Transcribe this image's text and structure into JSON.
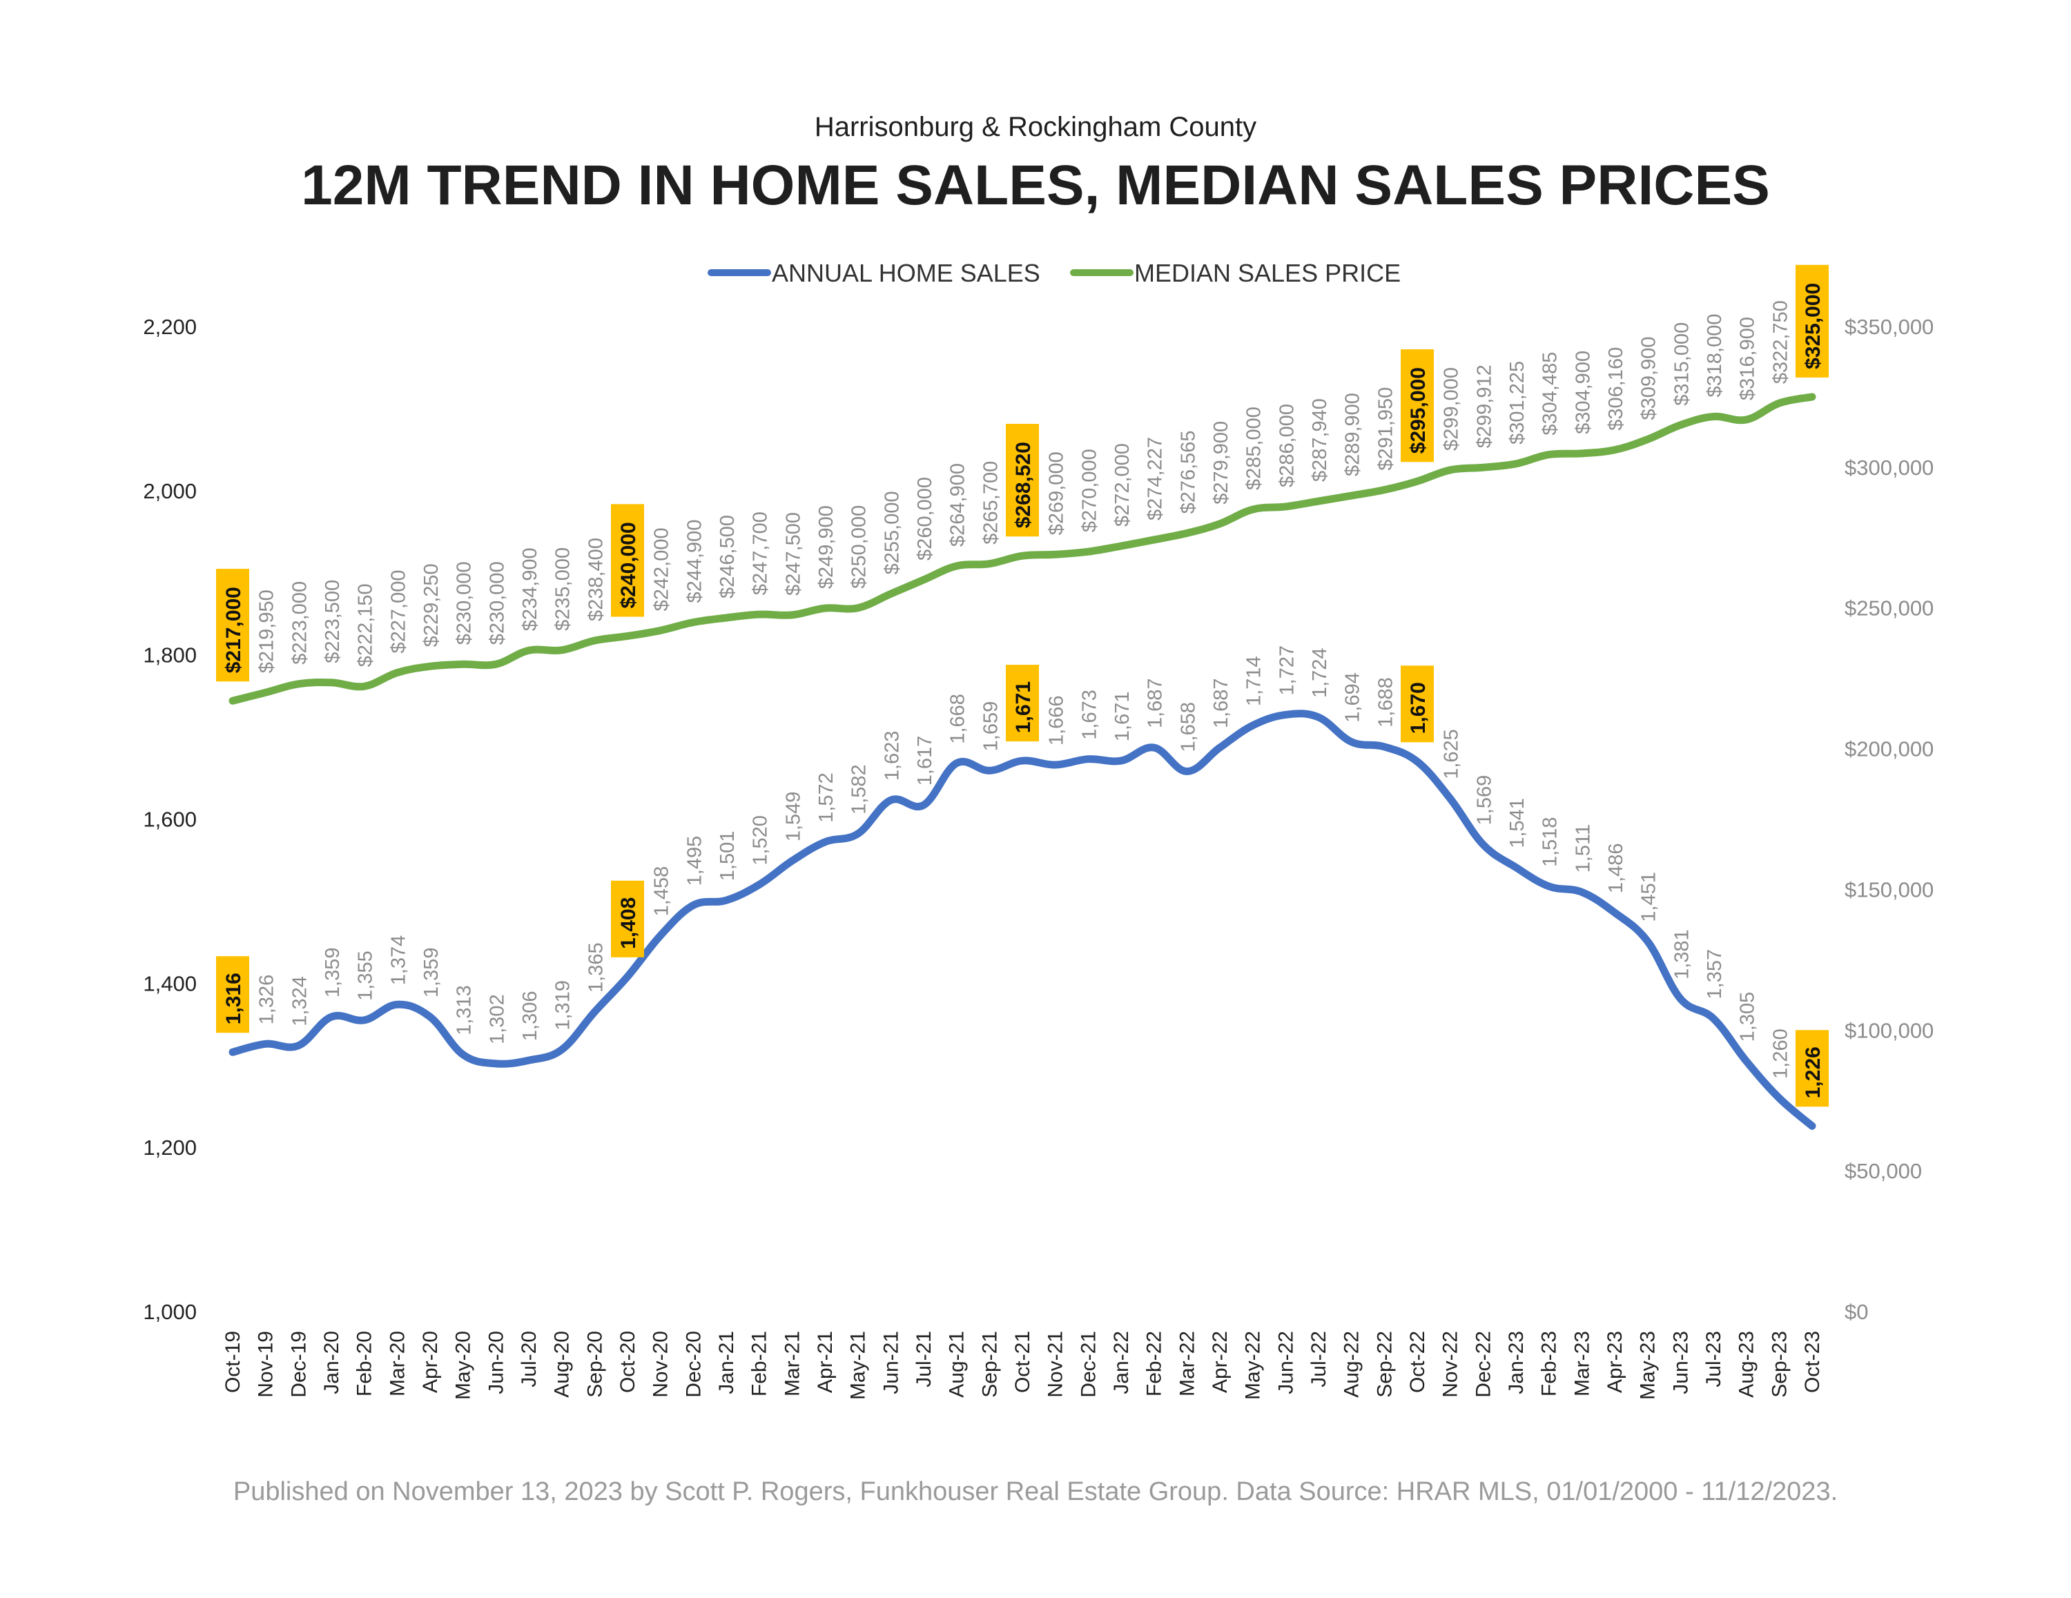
{
  "chart_data": {
    "type": "line",
    "subtitle": "Harrisonburg & Rockingham County",
    "title": "12M TREND IN HOME SALES, MEDIAN SALES PRICES",
    "categories": [
      "Oct-19",
      "Nov-19",
      "Dec-19",
      "Jan-20",
      "Feb-20",
      "Mar-20",
      "Apr-20",
      "May-20",
      "Jun-20",
      "Jul-20",
      "Aug-20",
      "Sep-20",
      "Oct-20",
      "Nov-20",
      "Dec-20",
      "Jan-21",
      "Feb-21",
      "Mar-21",
      "Apr-21",
      "May-21",
      "Jun-21",
      "Jul-21",
      "Aug-21",
      "Sep-21",
      "Oct-21",
      "Nov-21",
      "Dec-21",
      "Jan-22",
      "Feb-22",
      "Mar-22",
      "Apr-22",
      "May-22",
      "Jun-22",
      "Jul-22",
      "Aug-22",
      "Sep-22",
      "Oct-22",
      "Nov-22",
      "Dec-22",
      "Jan-23",
      "Feb-23",
      "Mar-23",
      "Apr-23",
      "May-23",
      "Jun-23",
      "Jul-23",
      "Aug-23",
      "Sep-23",
      "Oct-23"
    ],
    "series": [
      {
        "name": "ANNUAL HOME SALES",
        "axis": "left",
        "color": "#4472C4",
        "values": [
          1316,
          1326,
          1324,
          1359,
          1355,
          1374,
          1359,
          1313,
          1302,
          1306,
          1319,
          1365,
          1408,
          1458,
          1495,
          1501,
          1520,
          1549,
          1572,
          1582,
          1623,
          1617,
          1668,
          1659,
          1671,
          1666,
          1673,
          1671,
          1687,
          1658,
          1687,
          1714,
          1727,
          1724,
          1694,
          1688,
          1670,
          1625,
          1569,
          1541,
          1518,
          1511,
          1486,
          1451,
          1381,
          1357,
          1305,
          1260,
          1226
        ],
        "labels": [
          "1,316",
          "1,326",
          "1,324",
          "1,359",
          "1,355",
          "1,374",
          "1,359",
          "1,313",
          "1,302",
          "1,306",
          "1,319",
          "1,365",
          "1,408",
          "1,458",
          "1,495",
          "1,501",
          "1,520",
          "1,549",
          "1,572",
          "1,582",
          "1,623",
          "1,617",
          "1,668",
          "1,659",
          "1,671",
          "1,666",
          "1,673",
          "1,671",
          "1,687",
          "1,658",
          "1,687",
          "1,714",
          "1,727",
          "1,724",
          "1,694",
          "1,688",
          "1,670",
          "1,625",
          "1,569",
          "1,541",
          "1,518",
          "1,511",
          "1,486",
          "1,451",
          "1,381",
          "1,357",
          "1,305",
          "1,260",
          "1,226"
        ],
        "highlighted": [
          "Oct-19",
          "Oct-20",
          "Oct-21",
          "Oct-22",
          "Oct-23"
        ]
      },
      {
        "name": "MEDIAN SALES PRICE",
        "axis": "right",
        "color": "#70AD47",
        "values": [
          217000,
          219950,
          223000,
          223500,
          222150,
          227000,
          229250,
          230000,
          230000,
          234900,
          235000,
          238400,
          240000,
          242000,
          244900,
          246500,
          247700,
          247500,
          249900,
          250000,
          255000,
          260000,
          264900,
          265700,
          268520,
          269000,
          270000,
          272000,
          274227,
          276565,
          279900,
          285000,
          286000,
          287940,
          289900,
          291950,
          295000,
          299000,
          299912,
          301225,
          304485,
          304900,
          306160,
          309900,
          315000,
          318000,
          316900,
          322750,
          325000
        ],
        "labels": [
          "$217,000",
          "$219,950",
          "$223,000",
          "$223,500",
          "$222,150",
          "$227,000",
          "$229,250",
          "$230,000",
          "$230,000",
          "$234,900",
          "$235,000",
          "$238,400",
          "$240,000",
          "$242,000",
          "$244,900",
          "$246,500",
          "$247,700",
          "$247,500",
          "$249,900",
          "$250,000",
          "$255,000",
          "$260,000",
          "$264,900",
          "$265,700",
          "$268,520",
          "$269,000",
          "$270,000",
          "$272,000",
          "$274,227",
          "$276,565",
          "$279,900",
          "$285,000",
          "$286,000",
          "$287,940",
          "$289,900",
          "$291,950",
          "$295,000",
          "$299,000",
          "$299,912",
          "$301,225",
          "$304,485",
          "$304,900",
          "$306,160",
          "$309,900",
          "$315,000",
          "$318,000",
          "$316,900",
          "$322,750",
          "$325,000"
        ],
        "highlighted": [
          "Oct-19",
          "Oct-20",
          "Oct-21",
          "Oct-22",
          "Oct-23"
        ]
      }
    ],
    "y_left": {
      "min": 1000,
      "max": 2200,
      "ticks": [
        "1,000",
        "1,200",
        "1,400",
        "1,600",
        "1,800",
        "2,000",
        "2,200"
      ],
      "tick_values": [
        1000,
        1200,
        1400,
        1600,
        1800,
        2000,
        2200
      ]
    },
    "y_right": {
      "min": 0,
      "max": 350000,
      "ticks": [
        "$0",
        "$50,000",
        "$100,000",
        "$150,000",
        "$200,000",
        "$250,000",
        "$300,000",
        "$350,000"
      ],
      "tick_values": [
        0,
        50000,
        100000,
        150000,
        200000,
        250000,
        300000,
        350000
      ]
    },
    "grid": false,
    "legend": "top-center",
    "highlight_color": "#FFC000",
    "label_color": "#8c8c8c"
  },
  "footer": "Published on November 13, 2023 by Scott P. Rogers, Funkhouser Real Estate Group. Data Source: HRAR MLS, 01/01/2000 - 11/12/2023."
}
